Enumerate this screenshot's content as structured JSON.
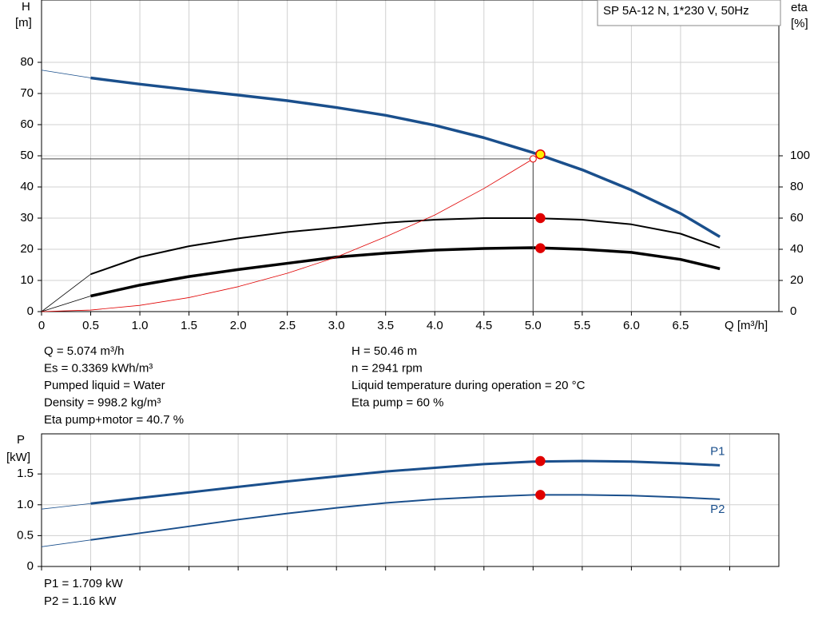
{
  "chart_data": [
    {
      "type": "line",
      "title": "SP 5A-12 N, 1*230 V, 50Hz",
      "x_label": "Q [m³/h]",
      "y_label": "H",
      "y_unit": "[m]",
      "y2_label": "eta",
      "y2_unit": "[%]",
      "x": [
        0,
        0.5,
        1,
        1.5,
        2,
        2.5,
        3,
        3.5,
        4,
        4.5,
        5,
        5.5,
        6,
        6.5,
        6.9
      ],
      "xlim": [
        0,
        7.5
      ],
      "xticks": [
        0,
        0.5,
        {
          "value": 1,
          "label": "1.0"
        },
        1.5,
        {
          "value": 2,
          "label": "2.0"
        },
        2.5,
        {
          "value": 3,
          "label": "3.0"
        },
        3.5,
        {
          "value": 4,
          "label": "4.0"
        },
        4.5,
        {
          "value": 5,
          "label": "5.0"
        },
        5.5,
        {
          "value": 6,
          "label": "6.0"
        },
        6.5
      ],
      "ylim": [
        0,
        100
      ],
      "yticks": [
        0,
        10,
        20,
        30,
        40,
        50,
        60,
        70,
        80
      ],
      "y2lim": [
        0,
        200
      ],
      "y2ticks": [
        0,
        20,
        40,
        60,
        80,
        100
      ],
      "grid": true,
      "series": [
        {
          "color": "#1a4f8c",
          "width": 3.5,
          "values": [
            null,
            75,
            73,
            71.2,
            69.5,
            67.7,
            65.5,
            63,
            59.8,
            55.8,
            51,
            45.5,
            39,
            31.5,
            24
          ]
        },
        {
          "color": "#1a4f8c",
          "width": 0.8,
          "values": [
            77.5,
            75,
            null,
            null,
            null,
            null,
            null,
            null,
            null,
            null,
            null,
            null,
            null,
            null,
            null
          ]
        },
        {
          "color": "#000000",
          "width": 2,
          "axis": "y2",
          "values": [
            null,
            24,
            35,
            42,
            47,
            51,
            54,
            57,
            59,
            60,
            60,
            59,
            56,
            50,
            41
          ]
        },
        {
          "color": "#000000",
          "width": 0.8,
          "axis": "y2",
          "values": [
            0,
            24,
            null,
            null,
            null,
            null,
            null,
            null,
            null,
            null,
            null,
            null,
            null,
            null,
            null
          ]
        },
        {
          "color": "#000000",
          "width": 3.5,
          "axis": "y2",
          "values": [
            null,
            10,
            17,
            22.5,
            27,
            31,
            35,
            37.5,
            39.5,
            40.5,
            41,
            40,
            38,
            33.5,
            27.5
          ]
        },
        {
          "color": "#000000",
          "width": 0.8,
          "axis": "y2",
          "values": [
            0,
            10,
            null,
            null,
            null,
            null,
            null,
            null,
            null,
            null,
            null,
            null,
            null,
            null,
            null
          ]
        },
        {
          "color": "#e00000",
          "width": 0.8,
          "values": [
            0,
            0.5,
            2,
            4.5,
            8,
            12.3,
            17.5,
            24,
            31,
            39.5,
            49,
            null,
            null,
            null,
            null
          ]
        }
      ],
      "markers": [
        {
          "x": 5.074,
          "y": 50.46,
          "color": "#ffee00"
        },
        {
          "x": 5.074,
          "y": 60,
          "axis": "y2",
          "color": "#e00000"
        },
        {
          "x": 5.074,
          "y": 40.7,
          "axis": "y2",
          "color": "#e00000"
        }
      ]
    },
    {
      "type": "line",
      "y_label": "P",
      "y_unit": "[kW]",
      "x": [
        0,
        0.5,
        1,
        1.5,
        2,
        2.5,
        3,
        3.5,
        4,
        4.5,
        5,
        5.5,
        6,
        6.5,
        6.9
      ],
      "xlim": [
        0,
        7.5
      ],
      "xgrid": [
        0,
        0.5,
        1,
        1.5,
        2,
        2.5,
        3,
        3.5,
        4,
        4.5,
        5,
        5.5,
        6,
        6.5,
        7
      ],
      "ylim": [
        0,
        2.15
      ],
      "yticks": [
        0,
        0.5,
        {
          "value": 1,
          "label": "1.0"
        },
        1.5
      ],
      "grid": true,
      "series": [
        {
          "name": "P1",
          "color": "#1a4f8c",
          "width": 3,
          "values": [
            null,
            1.02,
            1.11,
            1.2,
            1.29,
            1.38,
            1.46,
            1.54,
            1.6,
            1.66,
            1.7,
            1.71,
            1.7,
            1.67,
            1.64
          ]
        },
        {
          "color": "#1a4f8c",
          "width": 0.8,
          "values": [
            0.93,
            1.02,
            null,
            null,
            null,
            null,
            null,
            null,
            null,
            null,
            null,
            null,
            null,
            null,
            null
          ]
        },
        {
          "name": "P2",
          "color": "#1a4f8c",
          "width": 2,
          "values": [
            null,
            0.43,
            0.54,
            0.65,
            0.76,
            0.86,
            0.95,
            1.03,
            1.09,
            1.13,
            1.16,
            1.16,
            1.15,
            1.12,
            1.09
          ]
        },
        {
          "color": "#1a4f8c",
          "width": 0.8,
          "values": [
            0.32,
            0.43,
            null,
            null,
            null,
            null,
            null,
            null,
            null,
            null,
            null,
            null,
            null,
            null,
            null
          ]
        }
      ],
      "markers": [
        {
          "x": 5.074,
          "y": 1.709,
          "color": "#e00000"
        },
        {
          "x": 5.074,
          "y": 1.16,
          "color": "#e00000"
        }
      ]
    }
  ],
  "info": {
    "left": [
      "Q = 5.074 m³/h",
      "Es = 0.3369 kWh/m³",
      "Pumped liquid = Water",
      "Density = 998.2 kg/m³",
      "Eta pump+motor = 40.7 %"
    ],
    "right": [
      "H = 50.46 m",
      "n = 2941 rpm",
      "Liquid temperature during operation = 20 °C",
      "Eta pump = 60 %"
    ],
    "power": [
      "P1 = 1.709 kW",
      "P2 = 1.16 kW"
    ]
  }
}
